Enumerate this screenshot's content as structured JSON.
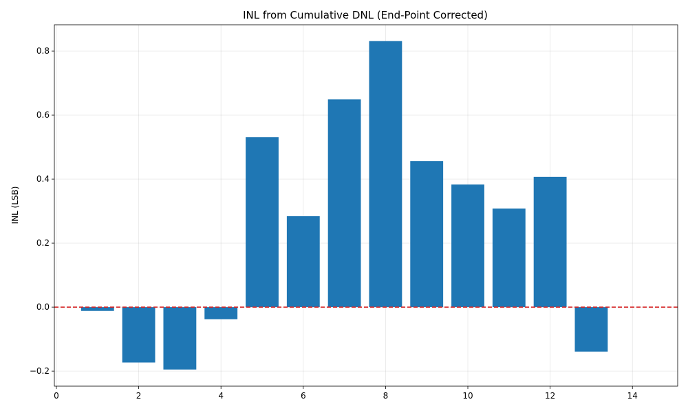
{
  "chart_data": {
    "type": "bar",
    "title": "INL from Cumulative DNL (End-Point Corrected)",
    "xlabel": "",
    "ylabel": "INL (LSB)",
    "x": [
      1,
      2,
      3,
      4,
      5,
      6,
      7,
      8,
      9,
      10,
      11,
      12,
      13
    ],
    "values": [
      -0.012,
      -0.173,
      -0.195,
      -0.038,
      0.531,
      0.284,
      0.649,
      0.831,
      0.456,
      0.383,
      0.308,
      0.407,
      -0.139
    ],
    "xlim": [
      -0.05,
      15.1
    ],
    "ylim": [
      -0.247,
      0.882
    ],
    "xticks": [
      0,
      2,
      4,
      6,
      8,
      10,
      12,
      14
    ],
    "yticks": [
      -0.2,
      0.0,
      0.2,
      0.4,
      0.6,
      0.8
    ],
    "xtick_labels": [
      "0",
      "2",
      "4",
      "6",
      "8",
      "10",
      "12",
      "14"
    ],
    "ytick_labels": [
      "−0.2",
      "0.0",
      "0.2",
      "0.4",
      "0.6",
      "0.8"
    ],
    "reference_line": {
      "y": 0,
      "color": "#d62728",
      "style": "dashed"
    },
    "bar_color": "#1f77b4",
    "grid": true
  }
}
